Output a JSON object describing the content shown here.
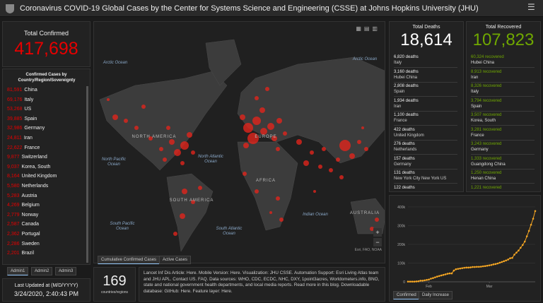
{
  "header": {
    "title": "Coronavirus COVID-19 Global Cases by the Center for Systems Science and Engineering (CSSE) at Johns Hopkins University (JHU)"
  },
  "total_confirmed": {
    "label": "Total Confirmed",
    "value": "417,698"
  },
  "confirmed_list": {
    "title": "Confirmed Cases by Country/Region/Sovereignty",
    "rows": [
      {
        "count": "81,591",
        "place": "China"
      },
      {
        "count": "69,176",
        "place": "Italy"
      },
      {
        "count": "53,268",
        "place": "US"
      },
      {
        "count": "39,885",
        "place": "Spain"
      },
      {
        "count": "32,986",
        "place": "Germany"
      },
      {
        "count": "24,811",
        "place": "Iran"
      },
      {
        "count": "22,622",
        "place": "France"
      },
      {
        "count": "9,877",
        "place": "Switzerland"
      },
      {
        "count": "9,037",
        "place": "Korea, South"
      },
      {
        "count": "8,164",
        "place": "United Kingdom"
      },
      {
        "count": "5,580",
        "place": "Netherlands"
      },
      {
        "count": "5,283",
        "place": "Austria"
      },
      {
        "count": "4,269",
        "place": "Belgium"
      },
      {
        "count": "2,779",
        "place": "Norway"
      },
      {
        "count": "2,587",
        "place": "Canada"
      },
      {
        "count": "2,362",
        "place": "Portugal"
      },
      {
        "count": "2,286",
        "place": "Sweden"
      },
      {
        "count": "2,201",
        "place": "Brazil"
      }
    ]
  },
  "admin_tabs": [
    "Admin1",
    "Admin2",
    "Admin3"
  ],
  "last_updated": {
    "label": "Last Updated at (M/D/YYYY)",
    "value": "3/24/2020, 2:40:43 PM"
  },
  "map": {
    "labels": [
      "Arctic Ocean",
      "Arctic Ocean",
      "NORTH AMERICA",
      "North Pacific Ocean",
      "North Atlantic Ocean",
      "EUROPE",
      "AFRICA",
      "SOUTH AMERICA",
      "South Pacific Ocean",
      "South Atlantic Ocean",
      "Indian Ocean",
      "AUSTRALIA"
    ],
    "tabs": [
      "Cumulative Confirmed Cases",
      "Active Cases"
    ],
    "attribution": "Esri, FAO, NOAA",
    "zoom_in": "+",
    "zoom_out": "−"
  },
  "countries": {
    "value": "169",
    "label": "countries/regions"
  },
  "info": {
    "text": "Lancet Inf Dis Article: Here. Mobile Version: Here. Visualization: JHU CSSE. Automation Support: Esri Living Atlas team and JHU APL. Contact US. FAQ. Data sources: WHO, CDC, ECDC, NHC, DXY, 1point3acres, Worldometers.info, BNO, state and national government health departments, and local media reports. Read more in this blog. Downloadable database: GitHub: Here. Feature layer: Here."
  },
  "total_deaths": {
    "label": "Total Deaths",
    "value": "18,614",
    "rows": [
      {
        "count": "6,820 deaths",
        "place": "Italy"
      },
      {
        "count": "3,160 deaths",
        "place": "Hubei China"
      },
      {
        "count": "2,808 deaths",
        "place": "Spain"
      },
      {
        "count": "1,934 deaths",
        "place": "Iran"
      },
      {
        "count": "1,100 deaths",
        "place": "France"
      },
      {
        "count": "422 deaths",
        "place": "United Kingdom"
      },
      {
        "count": "276 deaths",
        "place": "Netherlands"
      },
      {
        "count": "157 deaths",
        "place": "Germany"
      },
      {
        "count": "131 deaths",
        "place": "New York City New York US"
      },
      {
        "count": "122 deaths",
        "place": ""
      }
    ]
  },
  "total_recovered": {
    "label": "Total Recovered",
    "value": "107,823",
    "rows": [
      {
        "count": "60,324 recovered",
        "place": "Hubei China"
      },
      {
        "count": "8,913 recovered",
        "place": "Iran"
      },
      {
        "count": "8,326 recovered",
        "place": "Italy"
      },
      {
        "count": "3,794 recovered",
        "place": "Spain"
      },
      {
        "count": "3,507 recovered",
        "place": "Korea, South"
      },
      {
        "count": "3,281 recovered",
        "place": "France"
      },
      {
        "count": "3,243 recovered",
        "place": "Germany"
      },
      {
        "count": "1,333 recovered",
        "place": "Guangdong China"
      },
      {
        "count": "1,250 recovered",
        "place": "Henan China"
      },
      {
        "count": "1,221 recovered",
        "place": ""
      }
    ]
  },
  "chart_data": {
    "type": "line",
    "color": "#f5a623",
    "categories": [
      null,
      null,
      null,
      null,
      null,
      null,
      null,
      null,
      null,
      null,
      "Feb",
      null,
      null,
      null,
      null,
      null,
      null,
      null,
      null,
      null,
      null,
      null,
      null,
      null,
      null,
      null,
      null,
      null,
      null,
      null,
      null,
      null,
      null,
      null,
      null,
      null,
      null,
      null,
      null,
      "Mar",
      null,
      null,
      null,
      null,
      null,
      null,
      null,
      null,
      null,
      null,
      null,
      null,
      null,
      null,
      null,
      null,
      null,
      null,
      null,
      null,
      null,
      null
    ],
    "values": [
      1000,
      1000,
      1000,
      1000,
      2000,
      3000,
      6000,
      6000,
      8000,
      10000,
      12000,
      17000,
      20000,
      24000,
      28000,
      31000,
      34000,
      37000,
      40000,
      43000,
      45000,
      45000,
      60000,
      67000,
      69000,
      71000,
      73000,
      75000,
      76000,
      76000,
      77000,
      79000,
      79000,
      80000,
      80000,
      81000,
      83000,
      84000,
      86000,
      88000,
      90000,
      93000,
      95000,
      98000,
      102000,
      106000,
      110000,
      114000,
      119000,
      126000,
      128000,
      145000,
      156000,
      167000,
      182000,
      197000,
      215000,
      243000,
      272000,
      305000,
      337000,
      378000
    ],
    "ylim": [
      0,
      430000
    ],
    "yticks": [
      {
        "value": 0,
        "label": "0"
      },
      {
        "value": 100000,
        "label": "100k"
      },
      {
        "value": 200000,
        "label": "200k"
      },
      {
        "value": 300000,
        "label": "300k"
      },
      {
        "value": 400000,
        "label": "400k"
      }
    ],
    "grid": true
  },
  "chart_tabs": [
    "Confirmed",
    "Daily Increase"
  ]
}
